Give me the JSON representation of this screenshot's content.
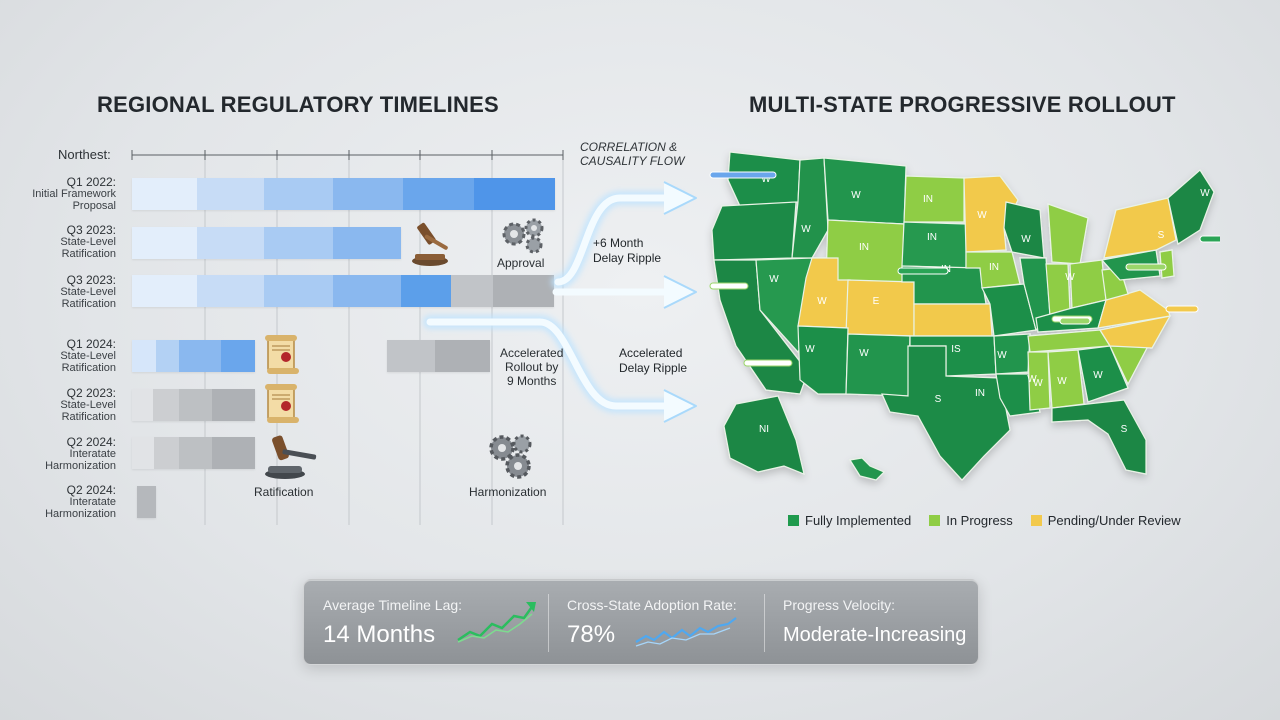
{
  "left_title": "REGIONAL REGULATORY TIMELINES",
  "right_title": "MULTI-STATE PROGRESSIVE ROLLOUT",
  "axis_label": "Northest:",
  "flow": {
    "correlation": "CORRELATION &\nCAUSALITY FLOW",
    "delay": "+6 Month\nDelay Ripple",
    "accelerated": "Accelerated\nDelay Ripple",
    "rollout": "Accelerated\nRollout by\n9 Months"
  },
  "rows": [
    {
      "line1": "Q1 2022:",
      "line2": "Initial Framework\nProposal"
    },
    {
      "line1": "Q3 2023:",
      "line2": "State-Level\nRatification"
    },
    {
      "line1": "Q3 2023:",
      "line2": "State-Level\nRatification"
    },
    {
      "line1": "Q1 2024:",
      "line2": "State-Level\nRatification"
    },
    {
      "line1": "Q2 2023:",
      "line2": "State-Level\nRatification"
    },
    {
      "line1": "Q2 2024:",
      "line2": "Interatate\nHarmonization"
    },
    {
      "line1": "Q2 2024:",
      "line2": "Interatate\nHarmonization"
    }
  ],
  "notes": {
    "approval": "Approval",
    "ratification": "Ratification",
    "harmonization": "Harmonization"
  },
  "map_labels": [
    "W",
    "IN",
    "W",
    "IN",
    "W",
    "IN",
    "IN",
    "W",
    "IN",
    "W",
    "W",
    "S",
    "W",
    "E",
    "W",
    "W",
    "W",
    "IS",
    "W",
    "IN",
    "S",
    "W",
    "W",
    "W",
    "W",
    "W",
    "NI",
    "S"
  ],
  "legend": [
    {
      "label": "Fully Implemented",
      "color": "#1f9a4d"
    },
    {
      "label": "In Progress",
      "color": "#8fcd45"
    },
    {
      "label": "Pending/Under Review",
      "color": "#f2c94c"
    }
  ],
  "stats": [
    {
      "key": "Average Timeline Lag:",
      "value": "14 Months",
      "spark": "green-sparkline-icon"
    },
    {
      "key": "Cross-State Adoption Rate:",
      "value": "78%",
      "spark": "blue-sparkline-icon"
    },
    {
      "key": "Progress Velocity:",
      "value": "Moderate-Increasing"
    }
  ]
}
